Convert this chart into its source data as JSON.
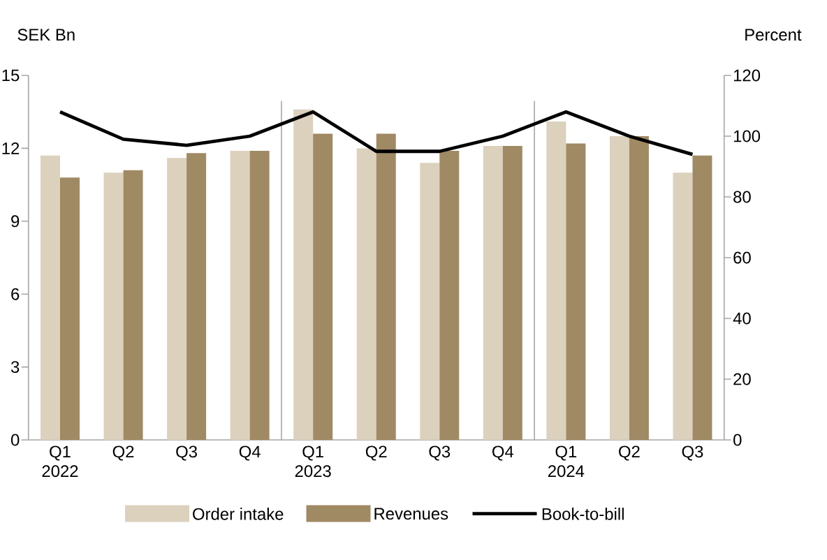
{
  "chart_data": {
    "type": "bar",
    "ylabel": "SEK Bn",
    "y2label": "Percent",
    "categories": [
      "Q1 2022",
      "Q2",
      "Q3",
      "Q4",
      "Q1 2023",
      "Q2",
      "Q3",
      "Q4",
      "Q1 2024",
      "Q2",
      "Q3"
    ],
    "series": [
      {
        "name": "Order intake",
        "color": "#dbd1bd",
        "values": [
          11.7,
          11.0,
          11.6,
          11.9,
          13.6,
          12.0,
          11.4,
          12.1,
          13.1,
          12.5,
          11.0
        ]
      },
      {
        "name": "Revenues",
        "color": "#a08a64",
        "values": [
          10.8,
          11.1,
          11.8,
          11.9,
          12.6,
          12.6,
          11.9,
          12.1,
          12.2,
          12.5,
          11.7
        ]
      },
      {
        "name": "Book-to-bill",
        "color": "#000000",
        "type": "line",
        "axis": "y2",
        "values": [
          108,
          99,
          97,
          100,
          108,
          95,
          95,
          100,
          108,
          100,
          94
        ]
      }
    ],
    "ylim": [
      0,
      15
    ],
    "yticks": [
      0,
      3,
      6,
      9,
      12,
      15
    ],
    "y2lim": [
      0,
      120
    ],
    "y2ticks": [
      0,
      20,
      40,
      60,
      80,
      100,
      120
    ],
    "legend": "bottom"
  }
}
